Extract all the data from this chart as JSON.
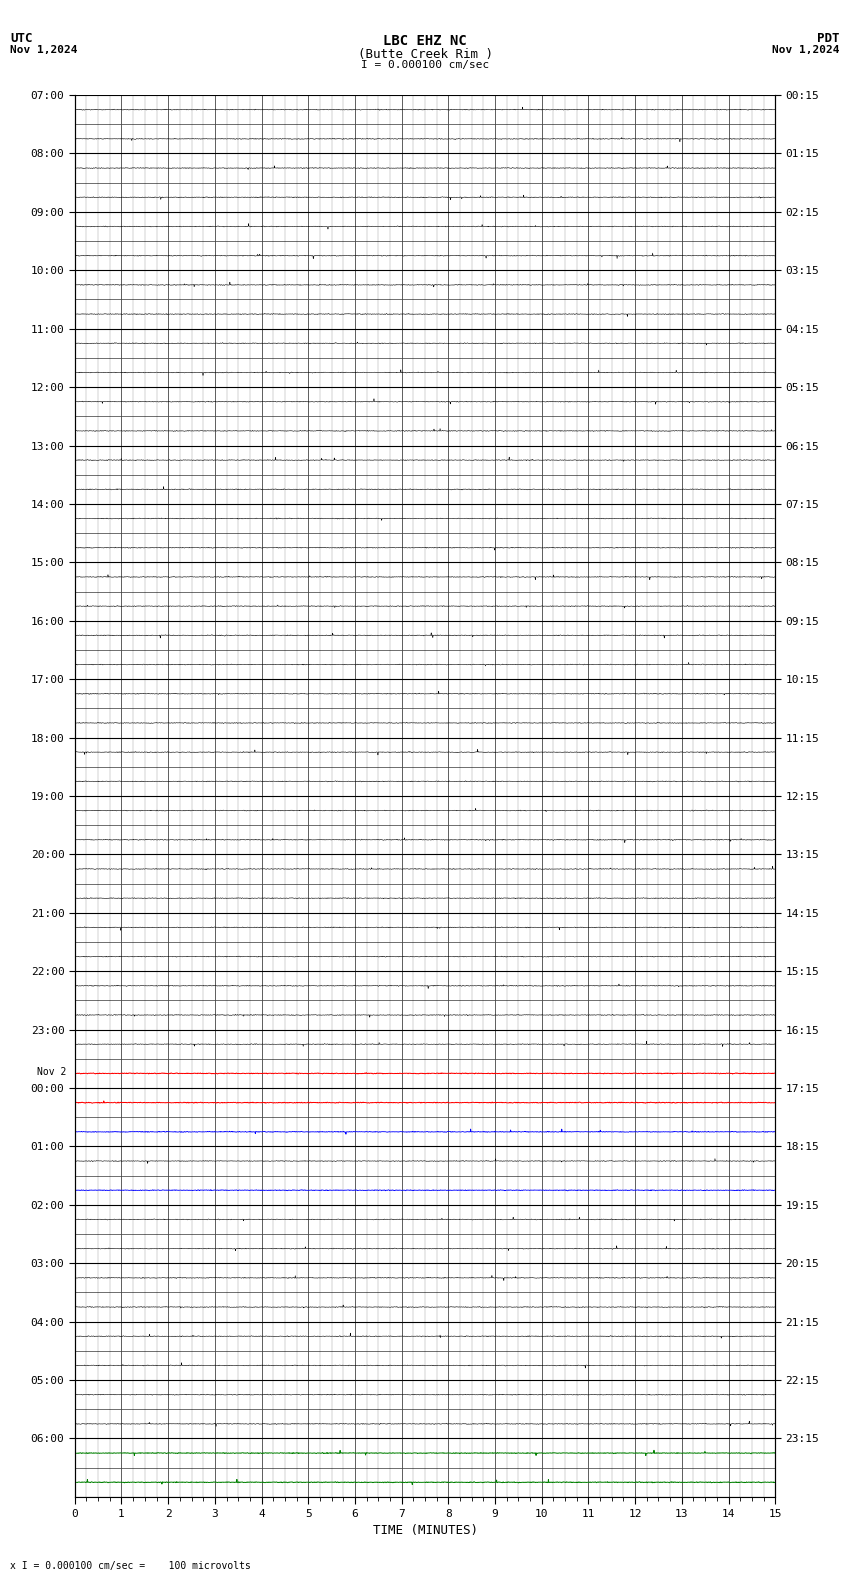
{
  "title_line1": "LBC EHZ NC",
  "title_line2": "(Butte Creek Rim )",
  "scale_label": "I = 0.000100 cm/sec",
  "utc_header": "UTC",
  "utc_date": "Nov 1,2024",
  "pdt_header": "PDT",
  "pdt_date": "Nov 1,2024",
  "bottom_label": "TIME (MINUTES)",
  "bottom_note": "x I = 0.000100 cm/sec =    100 microvolts",
  "left_labels": [
    {
      "row": 0,
      "label": "07:00"
    },
    {
      "row": 2,
      "label": "08:00"
    },
    {
      "row": 4,
      "label": "09:00"
    },
    {
      "row": 6,
      "label": "10:00"
    },
    {
      "row": 8,
      "label": "11:00"
    },
    {
      "row": 10,
      "label": "12:00"
    },
    {
      "row": 12,
      "label": "13:00"
    },
    {
      "row": 14,
      "label": "14:00"
    },
    {
      "row": 16,
      "label": "15:00"
    },
    {
      "row": 18,
      "label": "16:00"
    },
    {
      "row": 20,
      "label": "17:00"
    },
    {
      "row": 22,
      "label": "18:00"
    },
    {
      "row": 24,
      "label": "19:00"
    },
    {
      "row": 26,
      "label": "20:00"
    },
    {
      "row": 28,
      "label": "21:00"
    },
    {
      "row": 30,
      "label": "22:00"
    },
    {
      "row": 32,
      "label": "23:00"
    },
    {
      "row": 34,
      "label": "00:00",
      "extra": "Nov 2"
    },
    {
      "row": 36,
      "label": "01:00"
    },
    {
      "row": 38,
      "label": "02:00"
    },
    {
      "row": 40,
      "label": "03:00"
    },
    {
      "row": 42,
      "label": "04:00"
    },
    {
      "row": 44,
      "label": "05:00"
    },
    {
      "row": 46,
      "label": "06:00"
    }
  ],
  "right_labels": [
    {
      "row": 0,
      "label": "00:15"
    },
    {
      "row": 2,
      "label": "01:15"
    },
    {
      "row": 4,
      "label": "02:15"
    },
    {
      "row": 6,
      "label": "03:15"
    },
    {
      "row": 8,
      "label": "04:15"
    },
    {
      "row": 10,
      "label": "05:15"
    },
    {
      "row": 12,
      "label": "06:15"
    },
    {
      "row": 14,
      "label": "07:15"
    },
    {
      "row": 16,
      "label": "08:15"
    },
    {
      "row": 18,
      "label": "09:15"
    },
    {
      "row": 20,
      "label": "10:15"
    },
    {
      "row": 22,
      "label": "11:15"
    },
    {
      "row": 24,
      "label": "12:15"
    },
    {
      "row": 26,
      "label": "13:15"
    },
    {
      "row": 28,
      "label": "14:15"
    },
    {
      "row": 30,
      "label": "15:15"
    },
    {
      "row": 32,
      "label": "16:15"
    },
    {
      "row": 34,
      "label": "17:15"
    },
    {
      "row": 36,
      "label": "18:15"
    },
    {
      "row": 38,
      "label": "19:15"
    },
    {
      "row": 40,
      "label": "20:15"
    },
    {
      "row": 42,
      "label": "21:15"
    },
    {
      "row": 44,
      "label": "22:15"
    },
    {
      "row": 46,
      "label": "23:15"
    }
  ],
  "num_rows": 48,
  "x_min": 0,
  "x_max": 15,
  "x_ticks": [
    0,
    1,
    2,
    3,
    4,
    5,
    6,
    7,
    8,
    9,
    10,
    11,
    12,
    13,
    14,
    15
  ],
  "bg_color": "#ffffff",
  "major_hline_color": "#000000",
  "minor_hline_color": "#000000",
  "major_vline_color": "#444444",
  "minor_vline_color": "#999999",
  "trace_color_normal": "#000000",
  "trace_color_red": "#ff0000",
  "trace_color_blue": "#0000ff",
  "trace_color_green": "#008000",
  "noise_amplitude": 0.025,
  "red_rows": [
    33,
    34
  ],
  "blue_rows": [
    35,
    37
  ],
  "green_rows": [
    46,
    47
  ]
}
